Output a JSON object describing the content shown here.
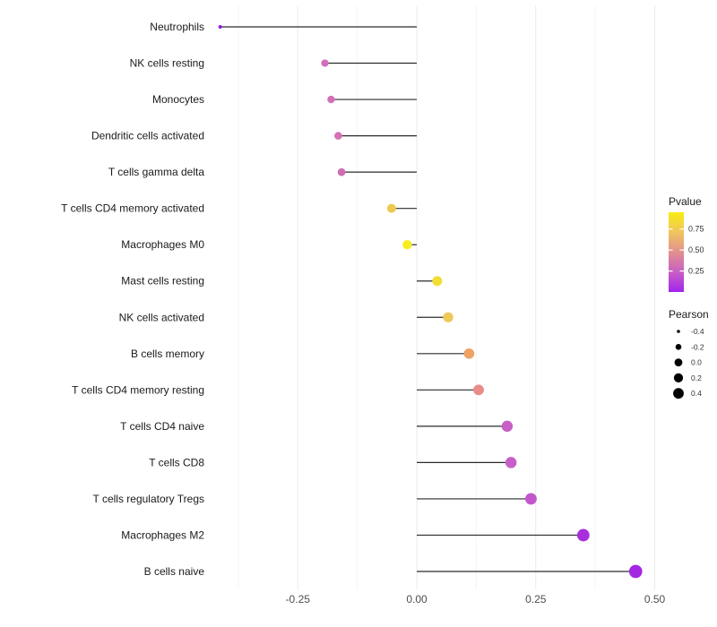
{
  "chart_data": {
    "type": "scatter",
    "subtype": "lollipop",
    "title": "",
    "xlabel": "",
    "ylabel": "",
    "x_ticks": [
      -0.25,
      0,
      0.25,
      0.5
    ],
    "x_tick_labels": [
      "-0.25",
      "0.00",
      "0.25",
      "0.50"
    ],
    "x_minor_ticks": [
      -0.375,
      -0.125,
      0.125,
      0.375
    ],
    "xlim": [
      -0.46,
      0.52
    ],
    "grid": "vertical-only",
    "baseline": 0,
    "points": [
      {
        "label": "Neutrophils",
        "pearson": -0.413,
        "pvalue": 0.05,
        "color": "#9021D8"
      },
      {
        "label": "NK cells resting",
        "pearson": -0.193,
        "pvalue": 0.32,
        "color": "#D46EBC"
      },
      {
        "label": "Monocytes",
        "pearson": -0.18,
        "pvalue": 0.3,
        "color": "#D26FB9"
      },
      {
        "label": "Dendritic cells activated",
        "pearson": -0.165,
        "pvalue": 0.3,
        "color": "#D56FB7"
      },
      {
        "label": "T cells gamma delta",
        "pearson": -0.158,
        "pvalue": 0.31,
        "color": "#D06CB4"
      },
      {
        "label": "T cells CD4 memory activated",
        "pearson": -0.053,
        "pvalue": 0.72,
        "color": "#EDC94F"
      },
      {
        "label": "Macrophages M0",
        "pearson": -0.02,
        "pvalue": 0.9,
        "color": "#F6EC1F"
      },
      {
        "label": "Mast cells resting",
        "pearson": 0.043,
        "pvalue": 0.82,
        "color": "#F2DE33"
      },
      {
        "label": "NK cells activated",
        "pearson": 0.066,
        "pvalue": 0.7,
        "color": "#EEC95A"
      },
      {
        "label": "B cells memory",
        "pearson": 0.11,
        "pvalue": 0.58,
        "color": "#EDA266"
      },
      {
        "label": "T cells CD4 memory resting",
        "pearson": 0.13,
        "pvalue": 0.47,
        "color": "#E98D88"
      },
      {
        "label": "T cells CD4 naive",
        "pearson": 0.19,
        "pvalue": 0.27,
        "color": "#C75FC5"
      },
      {
        "label": "T cells CD8",
        "pearson": 0.198,
        "pvalue": 0.26,
        "color": "#C75FC9"
      },
      {
        "label": "T cells regulatory  Tregs",
        "pearson": 0.24,
        "pvalue": 0.22,
        "color": "#C456CB"
      },
      {
        "label": "Macrophages M2",
        "pearson": 0.35,
        "pvalue": 0.08,
        "color": "#A92FDC"
      },
      {
        "label": "B cells naive",
        "pearson": 0.46,
        "pvalue": 0.03,
        "color": "#A328E2"
      }
    ],
    "legend_pvalue": {
      "title": "Pvalue",
      "ticks": [
        0.75,
        0.5,
        0.25
      ],
      "tick_labels": [
        "0.75",
        "0.50",
        "0.25"
      ],
      "range": [
        0,
        0.95
      ],
      "gradient_top_to_bottom": [
        "#F8EC13",
        "#F0C45E",
        "#E2908F",
        "#C95FC4",
        "#A124EE"
      ],
      "position": "right"
    },
    "legend_pearson": {
      "title": "Pearson",
      "sizes": [
        -0.4,
        -0.2,
        0,
        0.2,
        0.4
      ],
      "labels": [
        "-0.4",
        "-0.2",
        "0.0",
        "0.2",
        "0.4"
      ],
      "dot_color": "#000000",
      "position": "right"
    }
  },
  "colors": {
    "background": "#ffffff",
    "segment": "#2B2B2B",
    "grid_major": "#EBEBEB",
    "grid_minor": "#F5F5F5",
    "axis_tick_text": "#4D4D4D",
    "category_text": "#1A1A1A",
    "legend_text": "#333333",
    "legend_title_text": "#1A1A1A"
  }
}
